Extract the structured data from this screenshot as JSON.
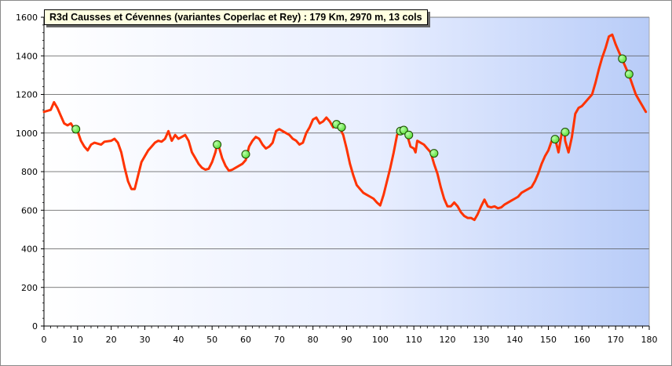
{
  "chart_data": {
    "type": "line",
    "title": "R3d Causses  et Cévennes (variantes Coperlac et Rey) : 179  Km, 2970  m, 13 cols",
    "xlabel": "",
    "ylabel": "",
    "xlim": [
      0,
      180
    ],
    "ylim": [
      0,
      1600
    ],
    "x_ticks": [
      "0",
      "10",
      "20",
      "30",
      "40",
      "50",
      "60",
      "70",
      "80",
      "90",
      "100",
      "110",
      "120",
      "130",
      "140",
      "150",
      "160",
      "170",
      "180"
    ],
    "y_ticks": [
      "0",
      "200",
      "400",
      "600",
      "800",
      "1000",
      "1200",
      "1400",
      "1600"
    ],
    "grid": "horizontal",
    "line_color": "#ff3300",
    "marker_color": "#66ee44",
    "profile": [
      [
        0,
        1110
      ],
      [
        2,
        1120
      ],
      [
        3,
        1160
      ],
      [
        4,
        1130
      ],
      [
        5,
        1090
      ],
      [
        6,
        1050
      ],
      [
        7,
        1040
      ],
      [
        8,
        1050
      ],
      [
        9,
        1020
      ],
      [
        10,
        1010
      ],
      [
        11,
        960
      ],
      [
        12,
        930
      ],
      [
        13,
        910
      ],
      [
        14,
        940
      ],
      [
        15,
        950
      ],
      [
        17,
        940
      ],
      [
        18,
        955
      ],
      [
        20,
        960
      ],
      [
        21,
        970
      ],
      [
        22,
        950
      ],
      [
        23,
        900
      ],
      [
        24,
        820
      ],
      [
        25,
        750
      ],
      [
        26,
        710
      ],
      [
        27,
        710
      ],
      [
        28,
        780
      ],
      [
        29,
        850
      ],
      [
        30,
        880
      ],
      [
        31,
        910
      ],
      [
        32,
        930
      ],
      [
        33,
        950
      ],
      [
        34,
        960
      ],
      [
        35,
        955
      ],
      [
        36,
        970
      ],
      [
        37,
        1010
      ],
      [
        38,
        960
      ],
      [
        39,
        990
      ],
      [
        40,
        970
      ],
      [
        41,
        980
      ],
      [
        42,
        990
      ],
      [
        43,
        960
      ],
      [
        44,
        900
      ],
      [
        45,
        870
      ],
      [
        46,
        840
      ],
      [
        47,
        820
      ],
      [
        48,
        810
      ],
      [
        49,
        815
      ],
      [
        50,
        850
      ],
      [
        51,
        900
      ],
      [
        51.5,
        940
      ],
      [
        52,
        930
      ],
      [
        53,
        870
      ],
      [
        54,
        830
      ],
      [
        55,
        805
      ],
      [
        56,
        810
      ],
      [
        57,
        820
      ],
      [
        58,
        830
      ],
      [
        59,
        840
      ],
      [
        60,
        860
      ],
      [
        61,
        930
      ],
      [
        62,
        960
      ],
      [
        63,
        980
      ],
      [
        64,
        970
      ],
      [
        65,
        940
      ],
      [
        66,
        920
      ],
      [
        67,
        930
      ],
      [
        68,
        950
      ],
      [
        69,
        1010
      ],
      [
        70,
        1020
      ],
      [
        71,
        1010
      ],
      [
        72,
        1000
      ],
      [
        73,
        990
      ],
      [
        74,
        970
      ],
      [
        75,
        960
      ],
      [
        76,
        940
      ],
      [
        77,
        950
      ],
      [
        78,
        1000
      ],
      [
        79,
        1030
      ],
      [
        80,
        1070
      ],
      [
        81,
        1080
      ],
      [
        82,
        1050
      ],
      [
        83,
        1060
      ],
      [
        84,
        1080
      ],
      [
        85,
        1060
      ],
      [
        86,
        1030
      ],
      [
        87,
        1040
      ],
      [
        88,
        1025
      ],
      [
        89,
        990
      ],
      [
        90,
        920
      ],
      [
        91,
        840
      ],
      [
        92,
        780
      ],
      [
        93,
        730
      ],
      [
        94,
        710
      ],
      [
        95,
        690
      ],
      [
        96,
        680
      ],
      [
        97,
        670
      ],
      [
        98,
        660
      ],
      [
        99,
        640
      ],
      [
        100,
        625
      ],
      [
        101,
        680
      ],
      [
        102,
        750
      ],
      [
        103,
        820
      ],
      [
        104,
        900
      ],
      [
        105,
        990
      ],
      [
        106,
        1010
      ],
      [
        107,
        1010
      ],
      [
        108,
        990
      ],
      [
        109,
        930
      ],
      [
        110,
        920
      ],
      [
        110.5,
        900
      ],
      [
        111,
        960
      ],
      [
        112,
        950
      ],
      [
        113,
        940
      ],
      [
        114,
        920
      ],
      [
        115,
        900
      ],
      [
        116,
        840
      ],
      [
        117,
        790
      ],
      [
        118,
        720
      ],
      [
        119,
        660
      ],
      [
        120,
        620
      ],
      [
        121,
        620
      ],
      [
        122,
        640
      ],
      [
        123,
        620
      ],
      [
        124,
        590
      ],
      [
        125,
        570
      ],
      [
        126,
        560
      ],
      [
        127,
        560
      ],
      [
        128,
        550
      ],
      [
        129,
        580
      ],
      [
        130,
        620
      ],
      [
        131,
        655
      ],
      [
        132,
        620
      ],
      [
        133,
        615
      ],
      [
        134,
        620
      ],
      [
        135,
        610
      ],
      [
        136,
        615
      ],
      [
        137,
        630
      ],
      [
        138,
        640
      ],
      [
        139,
        650
      ],
      [
        140,
        660
      ],
      [
        141,
        670
      ],
      [
        142,
        690
      ],
      [
        143,
        700
      ],
      [
        144,
        710
      ],
      [
        145,
        720
      ],
      [
        146,
        750
      ],
      [
        147,
        790
      ],
      [
        148,
        840
      ],
      [
        149,
        880
      ],
      [
        150,
        910
      ],
      [
        151,
        960
      ],
      [
        152,
        970
      ],
      [
        153,
        900
      ],
      [
        154,
        1000
      ],
      [
        154.8,
        1005
      ],
      [
        155,
        960
      ],
      [
        156,
        900
      ],
      [
        157,
        980
      ],
      [
        158,
        1100
      ],
      [
        159,
        1130
      ],
      [
        160,
        1140
      ],
      [
        161,
        1160
      ],
      [
        162,
        1180
      ],
      [
        163,
        1200
      ],
      [
        164,
        1260
      ],
      [
        165,
        1330
      ],
      [
        166,
        1390
      ],
      [
        167,
        1440
      ],
      [
        168,
        1500
      ],
      [
        169,
        1510
      ],
      [
        170,
        1460
      ],
      [
        171,
        1420
      ],
      [
        172,
        1380
      ],
      [
        173,
        1340
      ],
      [
        174,
        1300
      ],
      [
        175,
        1250
      ],
      [
        176,
        1200
      ],
      [
        177,
        1170
      ],
      [
        178,
        1140
      ],
      [
        179,
        1110
      ]
    ],
    "points": [
      [
        9.5,
        1020
      ],
      [
        51.5,
        940
      ],
      [
        60,
        890
      ],
      [
        87,
        1045
      ],
      [
        88.5,
        1030
      ],
      [
        106,
        1010
      ],
      [
        107,
        1015
      ],
      [
        108.5,
        990
      ],
      [
        116,
        895
      ],
      [
        152,
        968
      ],
      [
        155,
        1005
      ],
      [
        172,
        1385
      ],
      [
        174,
        1305
      ]
    ]
  }
}
